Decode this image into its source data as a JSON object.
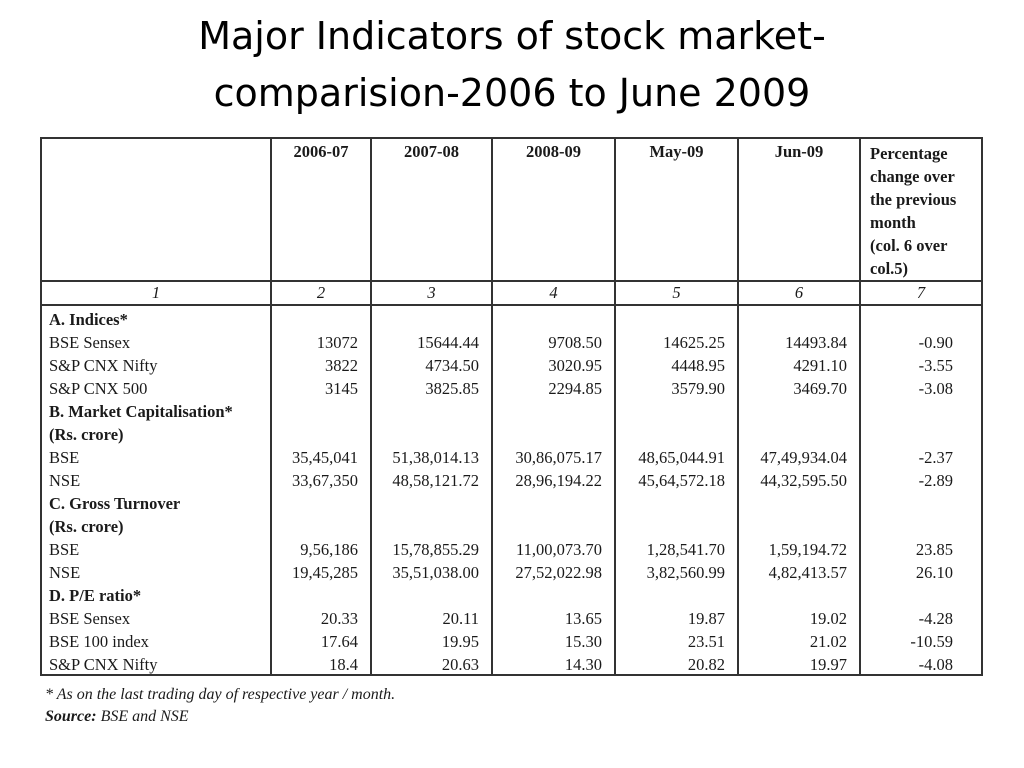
{
  "title": {
    "line1": "Major Indicators of stock market-",
    "line2": "comparision-2006 to June 2009"
  },
  "table": {
    "header": {
      "blank": "",
      "cols": [
        "2006-07",
        "2007-08",
        "2008-09",
        "May-09",
        "Jun-09"
      ],
      "pct_lines": [
        "Percentage",
        "change over",
        "the previous",
        "month",
        "(col. 6 over",
        "col.5)"
      ]
    },
    "col_numbers": [
      "1",
      "2",
      "3",
      "4",
      "5",
      "6",
      "7"
    ],
    "sections": [
      {
        "heading": [
          "A. Indices*"
        ],
        "rows": [
          {
            "label": "BSE Sensex",
            "values": [
              "13072",
              "15644.44",
              "9708.50",
              "14625.25",
              "14493.84",
              "-0.90"
            ]
          },
          {
            "label": "S&P CNX Nifty",
            "values": [
              "3822",
              "4734.50",
              "3020.95",
              "4448.95",
              "4291.10",
              "-3.55"
            ]
          },
          {
            "label": "S&P CNX 500",
            "values": [
              "3145",
              "3825.85",
              "2294.85",
              "3579.90",
              "3469.70",
              "-3.08"
            ]
          }
        ]
      },
      {
        "heading": [
          "B. Market Capitalisation*",
          "(Rs. crore)"
        ],
        "rows": [
          {
            "label": "BSE",
            "values": [
              "35,45,041",
              "51,38,014.13",
              "30,86,075.17",
              "48,65,044.91",
              "47,49,934.04",
              "-2.37"
            ]
          },
          {
            "label": "NSE",
            "values": [
              "33,67,350",
              "48,58,121.72",
              "28,96,194.22",
              "45,64,572.18",
              "44,32,595.50",
              "-2.89"
            ]
          }
        ]
      },
      {
        "heading": [
          "C. Gross Turnover",
          "(Rs. crore)"
        ],
        "rows": [
          {
            "label": "BSE",
            "values": [
              "9,56,186",
              "15,78,855.29",
              "11,00,073.70",
              "1,28,541.70",
              "1,59,194.72",
              "23.85"
            ]
          },
          {
            "label": "NSE",
            "values": [
              "19,45,285",
              "35,51,038.00",
              "27,52,022.98",
              "3,82,560.99",
              "4,82,413.57",
              "26.10"
            ]
          }
        ]
      },
      {
        "heading": [
          "D. P/E ratio*"
        ],
        "rows": [
          {
            "label": "BSE Sensex",
            "values": [
              "20.33",
              "20.11",
              "13.65",
              "19.87",
              "19.02",
              "-4.28"
            ]
          },
          {
            "label": "BSE 100 index",
            "values": [
              "17.64",
              "19.95",
              "15.30",
              "23.51",
              "21.02",
              "-10.59"
            ]
          },
          {
            "label": "S&P CNX Nifty",
            "values": [
              "18.4",
              "20.63",
              "14.30",
              "20.82",
              "19.97",
              "-4.08"
            ]
          }
        ]
      }
    ]
  },
  "footnote": {
    "note": "* As on the last trading day of respective year / month.",
    "source_label": "Source:",
    "source_text": " BSE and NSE"
  }
}
